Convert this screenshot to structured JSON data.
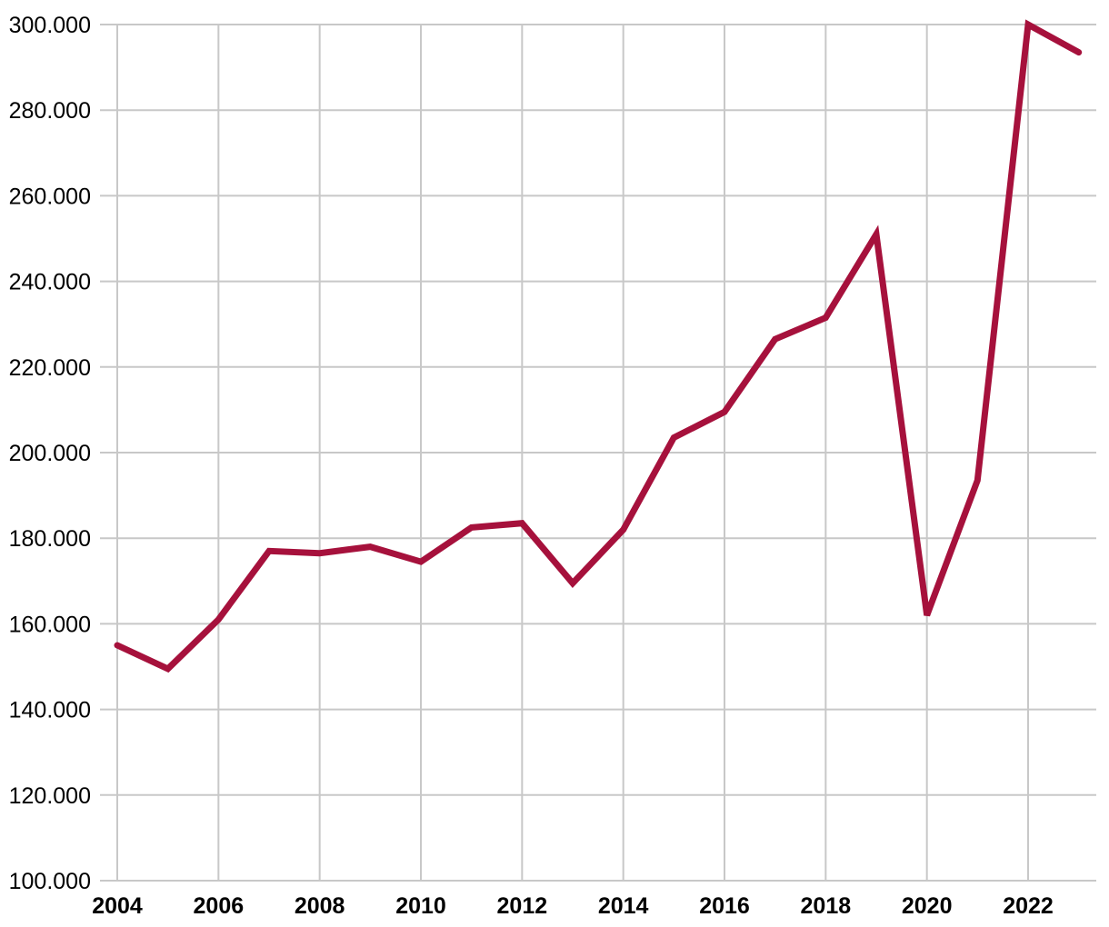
{
  "chart_data": {
    "type": "line",
    "title": "",
    "xlabel": "",
    "ylabel": "",
    "x": [
      2004,
      2005,
      2006,
      2007,
      2008,
      2009,
      2010,
      2011,
      2012,
      2013,
      2014,
      2015,
      2016,
      2017,
      2018,
      2019,
      2020,
      2021,
      2022,
      2023
    ],
    "series": [
      {
        "name": "value",
        "values": [
          155000,
          149500,
          161000,
          177000,
          176500,
          178000,
          174500,
          182500,
          183500,
          169500,
          182000,
          203500,
          209500,
          226500,
          231500,
          251000,
          162000,
          193500,
          300000,
          293500
        ]
      }
    ],
    "xlim": [
      2004,
      2023
    ],
    "ylim": [
      100000,
      300000
    ],
    "y_ticks": [
      100000,
      120000,
      140000,
      160000,
      180000,
      200000,
      220000,
      240000,
      260000,
      280000,
      300000
    ],
    "y_tick_labels": [
      "100.000",
      "120.000",
      "140.000",
      "160.000",
      "180.000",
      "200.000",
      "220.000",
      "240.000",
      "260.000",
      "280.000",
      "300.000"
    ],
    "x_ticks": [
      2004,
      2006,
      2008,
      2010,
      2012,
      2014,
      2016,
      2018,
      2020,
      2022
    ],
    "x_tick_labels": [
      "2004",
      "2006",
      "2008",
      "2010",
      "2012",
      "2014",
      "2016",
      "2018",
      "2020",
      "2022"
    ],
    "grid": true,
    "legend": "none"
  },
  "style": {
    "line_color": "#A6113C",
    "grid_color": "#C8C8C8",
    "tick_label_color": "#000000",
    "background_color": "#FFFFFF"
  }
}
